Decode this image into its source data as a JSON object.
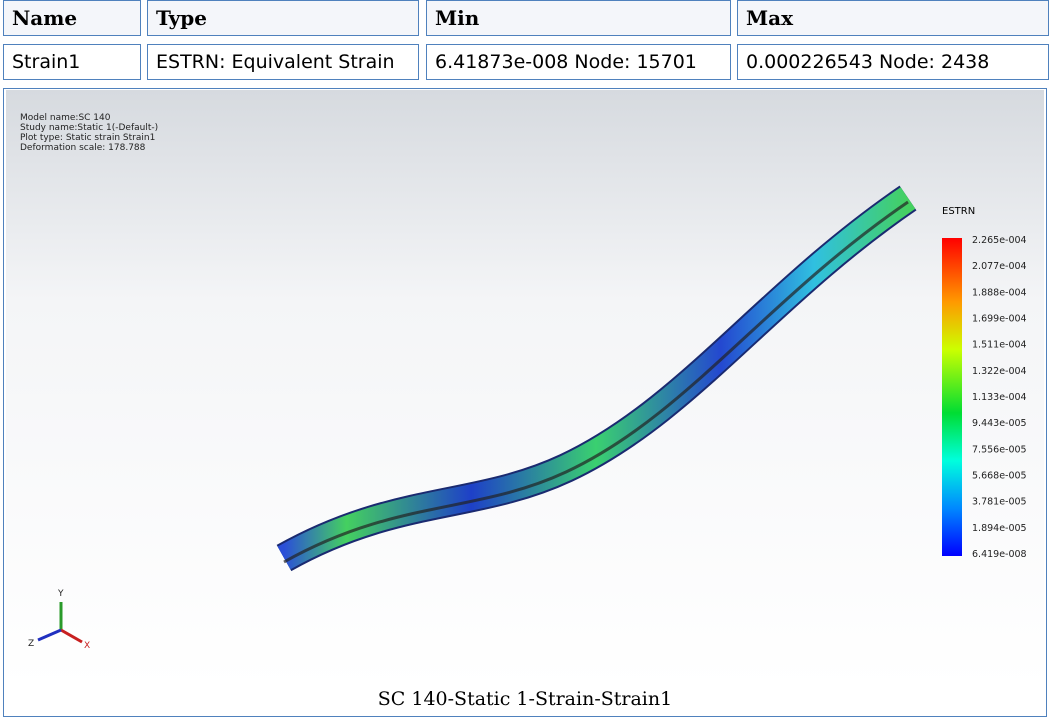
{
  "table": {
    "header": [
      "Name",
      "Type",
      "Min",
      "Max"
    ],
    "rows": [
      [
        "Strain1",
        "ESTRN: Equivalent Strain",
        "6.41873e-008 Node: 15701",
        "0.000226543 Node: 2438"
      ]
    ]
  },
  "plot": {
    "info": [
      "Model name:SC 140",
      "Study name:Static 1(-Default-)",
      "Plot type: Static strain Strain1",
      "Deformation scale: 178.788"
    ],
    "legend_title": "ESTRN",
    "legend_labels": [
      "2.265e-004",
      "2.077e-004",
      "1.888e-004",
      "1.699e-004",
      "1.511e-004",
      "1.322e-004",
      "1.133e-004",
      "9.443e-005",
      "7.556e-005",
      "5.668e-005",
      "3.781e-005",
      "1.894e-005",
      "6.419e-008"
    ],
    "axes": [
      "Y",
      "Z",
      "X"
    ]
  },
  "caption": "SC 140-Static 1-Strain-Strain1"
}
